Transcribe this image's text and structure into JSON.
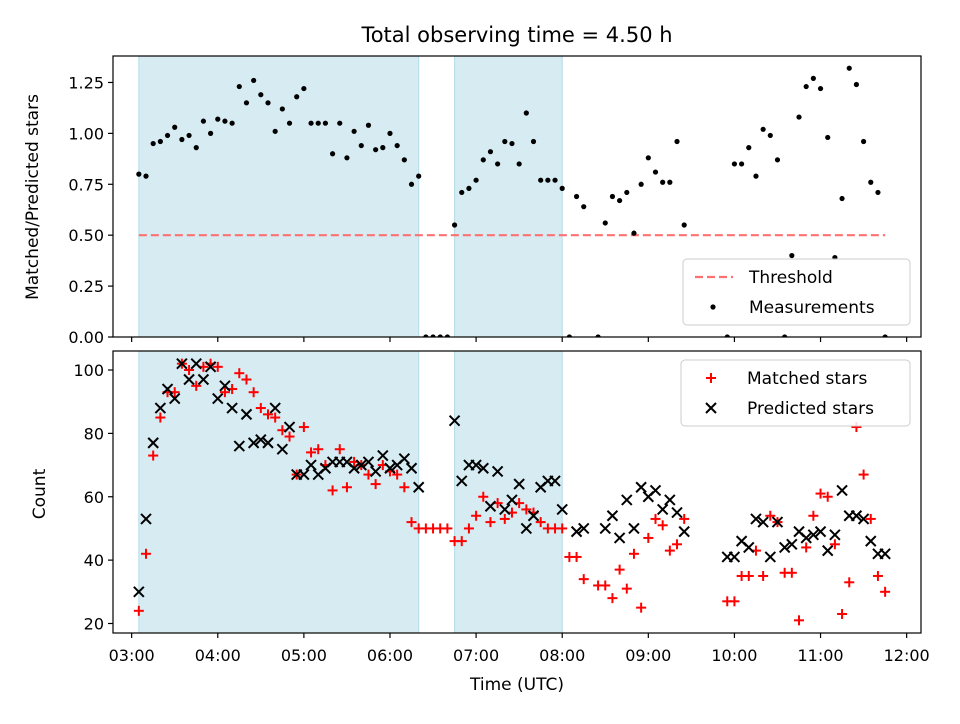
{
  "figure": {
    "title": "Total observing time = 4.50 h",
    "xlabel": "Time (UTC)"
  },
  "chart_data": [
    {
      "type": "scatter",
      "ylabel": "Matched/Predicted stars",
      "xlim": [
        "02:47",
        "12:10"
      ],
      "ylim": [
        0,
        1.38
      ],
      "yticks": [
        "0.00",
        "0.25",
        "0.50",
        "0.75",
        "1.00",
        "1.25"
      ],
      "xticks": [
        "03:00",
        "04:00",
        "05:00",
        "06:00",
        "07:00",
        "08:00",
        "09:00",
        "10:00",
        "11:00",
        "12:00"
      ],
      "shaded_intervals": [
        [
          "03:05",
          "06:20"
        ],
        [
          "06:45",
          "08:00"
        ]
      ],
      "shade_color": "#add8e6",
      "legend_position": "lower right",
      "series": [
        {
          "name": "Threshold",
          "style": "dashed-line",
          "color": "#ff7070",
          "x": [
            "03:05",
            "11:45"
          ],
          "y": [
            0.5,
            0.5
          ]
        },
        {
          "name": "Measurements",
          "style": "dot",
          "color": "#000000",
          "x": [
            "03:05",
            "03:10",
            "03:15",
            "03:20",
            "03:25",
            "03:30",
            "03:35",
            "03:40",
            "03:45",
            "03:50",
            "03:55",
            "04:00",
            "04:05",
            "04:10",
            "04:15",
            "04:20",
            "04:25",
            "04:30",
            "04:35",
            "04:40",
            "04:45",
            "04:50",
            "04:55",
            "05:00",
            "05:05",
            "05:10",
            "05:15",
            "05:20",
            "05:25",
            "05:30",
            "05:35",
            "05:40",
            "05:45",
            "05:50",
            "05:55",
            "06:00",
            "06:05",
            "06:10",
            "06:15",
            "06:20",
            "06:25",
            "06:30",
            "06:35",
            "06:40",
            "06:45",
            "06:50",
            "06:55",
            "07:00",
            "07:05",
            "07:10",
            "07:15",
            "07:20",
            "07:25",
            "07:30",
            "07:35",
            "07:40",
            "07:45",
            "07:50",
            "07:55",
            "08:00",
            "08:05",
            "08:10",
            "08:15",
            "08:25",
            "08:30",
            "08:35",
            "08:40",
            "08:45",
            "08:50",
            "08:55",
            "09:00",
            "09:05",
            "09:10",
            "09:15",
            "09:20",
            "09:25",
            "09:55",
            "10:00",
            "10:05",
            "10:10",
            "10:15",
            "10:20",
            "10:25",
            "10:30",
            "10:35",
            "10:40",
            "10:45",
            "10:50",
            "10:55",
            "11:00",
            "11:05",
            "11:10",
            "11:15",
            "11:20",
            "11:25",
            "11:30",
            "11:35",
            "11:40",
            "11:45"
          ],
          "y": [
            0.8,
            0.79,
            0.95,
            0.96,
            0.99,
            1.03,
            0.97,
            0.99,
            0.93,
            1.06,
            1.0,
            1.07,
            1.06,
            1.05,
            1.23,
            1.15,
            1.26,
            1.19,
            1.15,
            1.01,
            1.12,
            1.05,
            1.18,
            1.22,
            1.05,
            1.05,
            1.05,
            0.9,
            1.05,
            0.88,
            1.01,
            0.94,
            1.04,
            0.92,
            0.93,
            1.0,
            0.94,
            0.87,
            0.75,
            0.79,
            0.0,
            0.0,
            0.0,
            0.0,
            0.55,
            0.71,
            0.73,
            0.77,
            0.87,
            0.91,
            0.85,
            0.96,
            0.95,
            0.85,
            1.1,
            0.96,
            0.77,
            0.77,
            0.77,
            0.73,
            0.0,
            0.69,
            0.64,
            0.0,
            0.56,
            0.69,
            0.67,
            0.71,
            0.51,
            0.75,
            0.88,
            0.81,
            0.76,
            0.76,
            0.96,
            0.55,
            0.0,
            0.85,
            0.85,
            0.93,
            0.79,
            1.02,
            0.99,
            0.87,
            0.0,
            0.4,
            1.08,
            1.23,
            1.27,
            1.22,
            0.98,
            0.39,
            0.68,
            1.32,
            1.24,
            0.96,
            0.76,
            0.71,
            0.0
          ]
        }
      ]
    },
    {
      "type": "scatter",
      "ylabel": "Count",
      "xlim": [
        "02:47",
        "12:10"
      ],
      "ylim": [
        17,
        106
      ],
      "yticks": [
        "20",
        "40",
        "60",
        "80",
        "100"
      ],
      "xticks": [
        "03:00",
        "04:00",
        "05:00",
        "06:00",
        "07:00",
        "08:00",
        "09:00",
        "10:00",
        "11:00",
        "12:00"
      ],
      "shaded_intervals": [
        [
          "03:05",
          "06:20"
        ],
        [
          "06:45",
          "08:00"
        ]
      ],
      "shade_color": "#add8e6",
      "legend_position": "upper right",
      "series": [
        {
          "name": "Matched stars",
          "style": "plus",
          "color": "#ff0000",
          "x": [
            "03:05",
            "03:10",
            "03:15",
            "03:20",
            "03:25",
            "03:30",
            "03:35",
            "03:40",
            "03:45",
            "03:50",
            "03:55",
            "04:00",
            "04:05",
            "04:10",
            "04:15",
            "04:20",
            "04:25",
            "04:30",
            "04:35",
            "04:40",
            "04:45",
            "04:50",
            "04:55",
            "05:00",
            "05:05",
            "05:10",
            "05:15",
            "05:20",
            "05:25",
            "05:30",
            "05:35",
            "05:40",
            "05:45",
            "05:50",
            "05:55",
            "06:00",
            "06:05",
            "06:10",
            "06:15",
            "06:20",
            "06:25",
            "06:30",
            "06:35",
            "06:40",
            "06:45",
            "06:50",
            "06:55",
            "07:00",
            "07:05",
            "07:10",
            "07:15",
            "07:20",
            "07:25",
            "07:30",
            "07:35",
            "07:40",
            "07:45",
            "07:50",
            "07:55",
            "08:00",
            "08:05",
            "08:10",
            "08:15",
            "08:25",
            "08:30",
            "08:35",
            "08:40",
            "08:45",
            "08:50",
            "08:55",
            "09:00",
            "09:05",
            "09:10",
            "09:15",
            "09:20",
            "09:25",
            "09:55",
            "10:00",
            "10:05",
            "10:10",
            "10:15",
            "10:20",
            "10:25",
            "10:30",
            "10:35",
            "10:40",
            "10:45",
            "10:50",
            "10:55",
            "11:00",
            "11:05",
            "11:10",
            "11:15",
            "11:20",
            "11:25",
            "11:30",
            "11:35",
            "11:40",
            "11:45"
          ],
          "y": [
            24,
            42,
            73,
            85,
            93,
            93,
            102,
            100,
            95,
            101,
            102,
            101,
            93,
            94,
            99,
            97,
            93,
            88,
            86,
            85,
            81,
            79,
            67,
            82,
            74,
            75,
            70,
            62,
            75,
            63,
            71,
            70,
            67,
            64,
            70,
            68,
            67,
            63,
            52,
            50,
            50,
            50,
            50,
            50,
            46,
            46,
            50,
            54,
            60,
            52,
            58,
            53,
            55,
            58,
            56,
            55,
            52,
            50,
            50,
            50,
            41,
            41,
            34,
            32,
            32,
            28,
            37,
            31,
            42,
            25,
            47,
            53,
            51,
            43,
            45,
            53,
            27,
            27,
            35,
            35,
            43,
            35,
            54,
            52,
            36,
            36,
            21,
            44,
            54,
            61,
            60,
            45,
            23,
            33,
            82,
            67,
            53,
            35,
            30
          ]
        },
        {
          "name": "Predicted stars",
          "style": "x",
          "color": "#000000",
          "x": [
            "03:05",
            "03:10",
            "03:15",
            "03:20",
            "03:25",
            "03:30",
            "03:35",
            "03:40",
            "03:45",
            "03:50",
            "03:55",
            "04:00",
            "04:05",
            "04:10",
            "04:15",
            "04:20",
            "04:25",
            "04:30",
            "04:35",
            "04:40",
            "04:45",
            "04:50",
            "04:55",
            "05:00",
            "05:05",
            "05:10",
            "05:15",
            "05:20",
            "05:25",
            "05:30",
            "05:35",
            "05:40",
            "05:45",
            "05:50",
            "05:55",
            "06:00",
            "06:05",
            "06:10",
            "06:15",
            "06:20",
            "06:45",
            "06:50",
            "06:55",
            "07:00",
            "07:05",
            "07:10",
            "07:15",
            "07:20",
            "07:25",
            "07:30",
            "07:35",
            "07:40",
            "07:45",
            "07:50",
            "07:55",
            "08:00",
            "08:10",
            "08:15",
            "08:30",
            "08:35",
            "08:40",
            "08:45",
            "08:50",
            "08:55",
            "09:00",
            "09:05",
            "09:10",
            "09:15",
            "09:20",
            "09:25",
            "09:55",
            "10:00",
            "10:05",
            "10:10",
            "10:15",
            "10:20",
            "10:25",
            "10:30",
            "10:35",
            "10:40",
            "10:45",
            "10:50",
            "10:55",
            "11:00",
            "11:05",
            "11:10",
            "11:15",
            "11:20",
            "11:25",
            "11:30",
            "11:35",
            "11:40",
            "11:45"
          ],
          "y": [
            30,
            53,
            77,
            88,
            94,
            91,
            102,
            97,
            102,
            97,
            101,
            91,
            95,
            88,
            76,
            86,
            77,
            78,
            77,
            88,
            75,
            82,
            67,
            67,
            70,
            67,
            69,
            71,
            71,
            71,
            69,
            70,
            71,
            68,
            73,
            69,
            70,
            72,
            69,
            63,
            84,
            65,
            70,
            70,
            69,
            57,
            68,
            56,
            59,
            64,
            50,
            54,
            63,
            65,
            65,
            56,
            49,
            50,
            50,
            54,
            47,
            59,
            50,
            63,
            60,
            62,
            56,
            59,
            55,
            49,
            41,
            41,
            46,
            44,
            53,
            52,
            41,
            52,
            44,
            45,
            49,
            47,
            48,
            49,
            43,
            48,
            62,
            54,
            54,
            53,
            46,
            42,
            42
          ]
        }
      ]
    }
  ]
}
